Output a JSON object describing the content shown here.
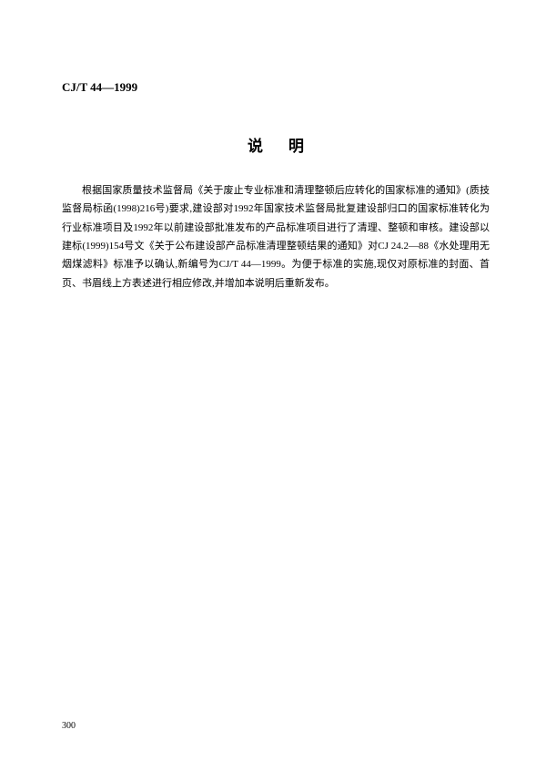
{
  "header": {
    "code": "CJ/T 44—1999"
  },
  "title": "说明",
  "body": {
    "paragraph": "根据国家质量技术监督局《关于废止专业标准和清理整顿后应转化的国家标准的通知》(质技监督局标函(1998)216号)要求,建设部对1992年国家技术监督局批复建设部归口的国家标准转化为行业标准项目及1992年以前建设部批准发布的产品标准项目进行了清理、整顿和审核。建设部以建标(1999)154号文《关于公布建设部产品标准清理整顿结果的通知》对CJ 24.2—88《水处理用无烟煤滤料》标准予以确认,新编号为CJ/T 44—1999。为便于标准的实施,现仅对原标准的封面、首页、书眉线上方表述进行相应修改,并增加本说明后重新发布。"
  },
  "pageNumber": "300",
  "styles": {
    "background_color": "#ffffff",
    "text_color": "#000000",
    "header_fontsize": 13,
    "title_fontsize": 17,
    "body_fontsize": 11,
    "page_number_fontsize": 10
  }
}
